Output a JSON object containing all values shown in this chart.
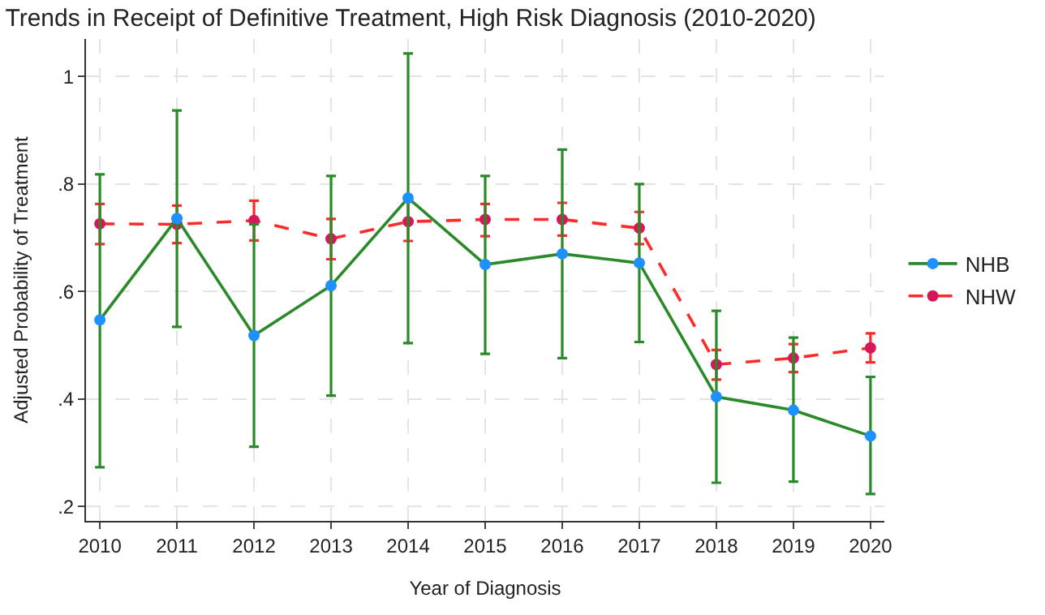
{
  "chart_data": {
    "type": "line",
    "title": "Trends in Receipt of Definitive Treatment, High Risk Diagnosis (2010-2020)",
    "xlabel": "Year of Diagnosis",
    "ylabel": "Adjusted Probability of Treatment",
    "x": [
      2010,
      2011,
      2012,
      2013,
      2014,
      2015,
      2016,
      2017,
      2018,
      2019,
      2020
    ],
    "xlim": [
      2009.82,
      2020.18
    ],
    "xticks": [
      2010,
      2011,
      2012,
      2013,
      2014,
      2015,
      2016,
      2017,
      2018,
      2019,
      2020
    ],
    "ylim": [
      0.173,
      1.07
    ],
    "yticks": [
      {
        "value": 0.2,
        "label": ".2"
      },
      {
        "value": 0.4,
        "label": ".4"
      },
      {
        "value": 0.6,
        "label": ".6"
      },
      {
        "value": 0.8,
        "label": ".8"
      },
      {
        "value": 1,
        "label": "1"
      }
    ],
    "grid": true,
    "legend": "right",
    "marker": "circle",
    "series": [
      {
        "name": "NHB",
        "color": "#2a8a2a",
        "colors": [
          "#1e90ff",
          "#1e90ff",
          "#1e90ff",
          "#1e90ff",
          "#1e90ff",
          "#1e90ff",
          "#1e90ff",
          "#1e90ff",
          "#1e90ff",
          "#1e90ff",
          "#1e90ff"
        ],
        "line_style": "solid",
        "values": [
          0.547,
          0.736,
          0.518,
          0.611,
          0.774,
          0.65,
          0.67,
          0.653,
          0.404,
          0.379,
          0.331
        ],
        "errors": [
          [
            0.273,
            0.818
          ],
          [
            0.534,
            0.937
          ],
          [
            0.311,
            0.725
          ],
          [
            0.406,
            0.815
          ],
          [
            0.504,
            1.043
          ],
          [
            0.484,
            0.815
          ],
          [
            0.476,
            0.864
          ],
          [
            0.506,
            0.8
          ],
          [
            0.244,
            0.564
          ],
          [
            0.246,
            0.514
          ],
          [
            0.223,
            0.441
          ]
        ]
      },
      {
        "name": "NHW",
        "color": "#ff2a2a",
        "colors": [
          "#d6185a",
          "#d6185a",
          "#d6185a",
          "#d6185a",
          "#d6185a",
          "#d6185a",
          "#d6185a",
          "#d6185a",
          "#d6185a",
          "#d6185a",
          "#d6185a"
        ],
        "line_style": "dashed",
        "values": [
          0.726,
          0.725,
          0.732,
          0.698,
          0.73,
          0.734,
          0.734,
          0.718,
          0.464,
          0.476,
          0.495
        ],
        "errors": [
          [
            0.688,
            0.763
          ],
          [
            0.69,
            0.76
          ],
          [
            0.695,
            0.769
          ],
          [
            0.66,
            0.735
          ],
          [
            0.694,
            0.767
          ],
          [
            0.703,
            0.763
          ],
          [
            0.704,
            0.765
          ],
          [
            0.688,
            0.748
          ],
          [
            0.436,
            0.491
          ],
          [
            0.45,
            0.502
          ],
          [
            0.468,
            0.522
          ]
        ]
      }
    ]
  }
}
